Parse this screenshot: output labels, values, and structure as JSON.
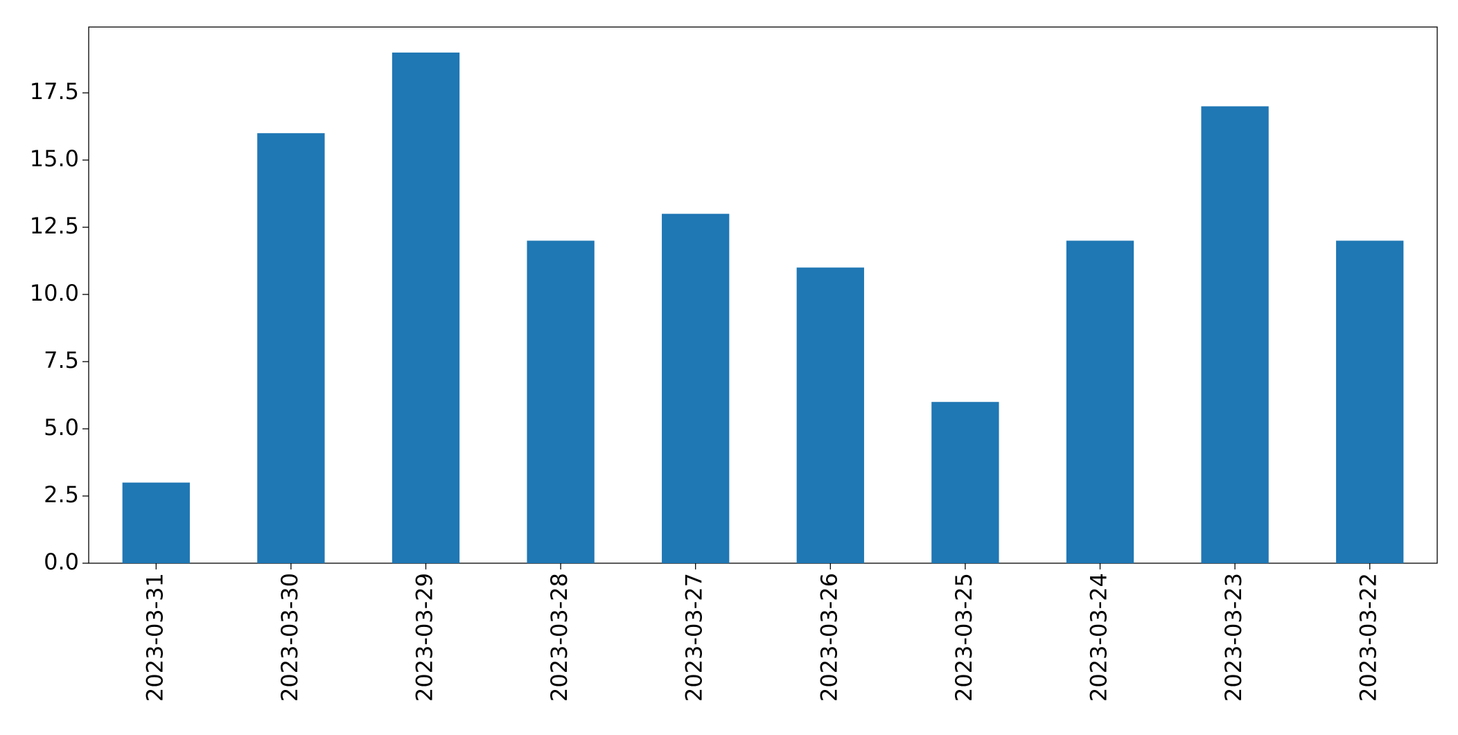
{
  "chart_data": {
    "type": "bar",
    "categories": [
      "2023-03-31",
      "2023-03-30",
      "2023-03-29",
      "2023-03-28",
      "2023-03-27",
      "2023-03-26",
      "2023-03-25",
      "2023-03-24",
      "2023-03-23",
      "2023-03-22"
    ],
    "values": [
      3,
      16,
      19,
      12,
      13,
      11,
      6,
      12,
      17,
      12
    ],
    "color": "#1f77b4",
    "ylim": [
      0,
      19.95
    ],
    "yticks": [
      {
        "value": 0,
        "label": "0.0"
      },
      2.5,
      {
        "value": 5,
        "label": "5.0"
      },
      7.5,
      {
        "value": 10,
        "label": "10.0"
      },
      12.5,
      {
        "value": 15,
        "label": "15.0"
      },
      17.5
    ],
    "grid": false
  }
}
